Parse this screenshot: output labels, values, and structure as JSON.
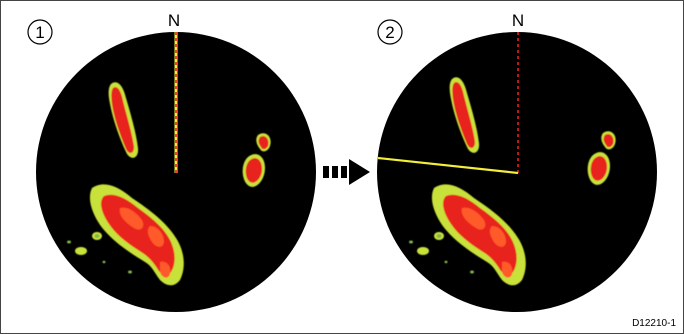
{
  "panels": [
    {
      "step": "1",
      "north_label": "N"
    },
    {
      "step": "2",
      "north_label": "N"
    }
  ],
  "figure_id": "D12210-1",
  "colors": {
    "radar_background": "#000000",
    "target_core": "#e8221c",
    "target_edge": "#c9e13a",
    "heading_line": "#f2ee3a",
    "north_dashes": "#e8221c",
    "frame": "#444444",
    "arrow": "#000000"
  },
  "icons": {
    "transition": "dashed-right-arrow-icon",
    "north_marker": "north-dashed-line"
  }
}
